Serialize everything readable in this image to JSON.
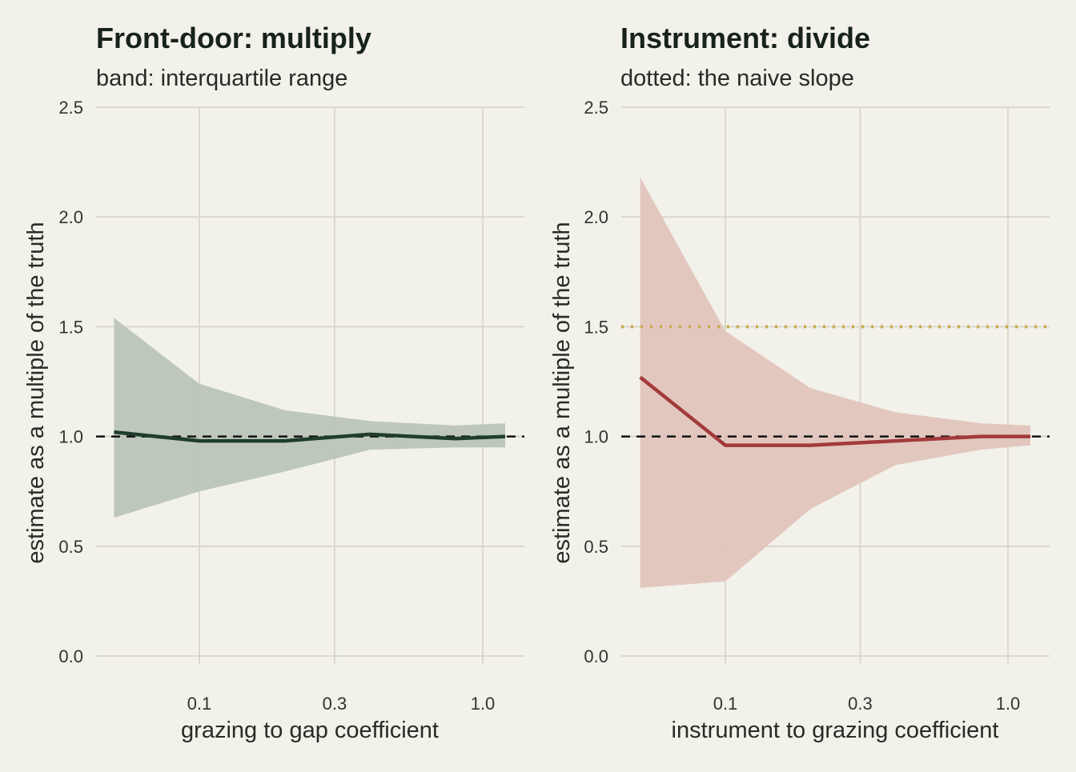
{
  "chart_data": [
    {
      "type": "line",
      "title": "Front-door: multiply",
      "subtitle": "band: interquartile range",
      "xlabel": "grazing to gap coefficient",
      "ylabel": "estimate as a multiple of the truth",
      "x_scale": "log",
      "xlim": [
        0.03,
        1.4
      ],
      "ylim": [
        0.0,
        2.5
      ],
      "x_ticks": [
        0.1,
        0.3,
        1.0
      ],
      "x_tick_labels": [
        "0.1",
        "0.3",
        "1.0"
      ],
      "y_ticks": [
        0.0,
        0.5,
        1.0,
        1.5,
        2.0,
        2.5
      ],
      "y_tick_labels": [
        "0.0",
        "0.5",
        "1.0",
        "1.5",
        "2.0",
        "2.5"
      ],
      "grid": true,
      "series": [
        {
          "x": [
            0.05,
            0.1,
            0.2,
            0.4,
            0.8,
            1.2
          ],
          "y": [
            1.02,
            0.98,
            0.98,
            1.01,
            0.99,
            1.0
          ],
          "lower": [
            0.63,
            0.75,
            0.84,
            0.94,
            0.95,
            0.95
          ],
          "upper": [
            1.54,
            1.24,
            1.12,
            1.07,
            1.05,
            1.06
          ],
          "color": "#1f3d2a",
          "band_color": "#bac4b8"
        }
      ],
      "reference_lines": [
        {
          "y": 1.0,
          "style": "dashed",
          "color": "#111111"
        }
      ]
    },
    {
      "type": "line",
      "title": "Instrument: divide",
      "subtitle": "dotted: the naive slope",
      "xlabel": "instrument to grazing coefficient",
      "ylabel": "estimate as a multiple of the truth",
      "x_scale": "log",
      "xlim": [
        0.03,
        1.4
      ],
      "ylim": [
        0.0,
        2.5
      ],
      "x_ticks": [
        0.1,
        0.3,
        1.0
      ],
      "x_tick_labels": [
        "0.1",
        "0.3",
        "1.0"
      ],
      "y_ticks": [
        0.0,
        0.5,
        1.0,
        1.5,
        2.0,
        2.5
      ],
      "y_tick_labels": [
        "0.0",
        "0.5",
        "1.0",
        "1.5",
        "2.0",
        "2.5"
      ],
      "grid": true,
      "series": [
        {
          "x": [
            0.05,
            0.1,
            0.2,
            0.4,
            0.8,
            1.2
          ],
          "y": [
            1.27,
            0.96,
            0.96,
            0.98,
            1.0,
            1.0
          ],
          "lower": [
            0.31,
            0.34,
            0.67,
            0.87,
            0.94,
            0.96
          ],
          "upper": [
            2.18,
            1.48,
            1.22,
            1.11,
            1.06,
            1.05
          ],
          "color": "#a23b3b",
          "band_color": "#e0c4bd"
        }
      ],
      "reference_lines": [
        {
          "y": 1.0,
          "style": "dashed",
          "color": "#111111"
        },
        {
          "y": 1.5,
          "style": "dotted",
          "color": "#c6a94a"
        }
      ]
    }
  ]
}
